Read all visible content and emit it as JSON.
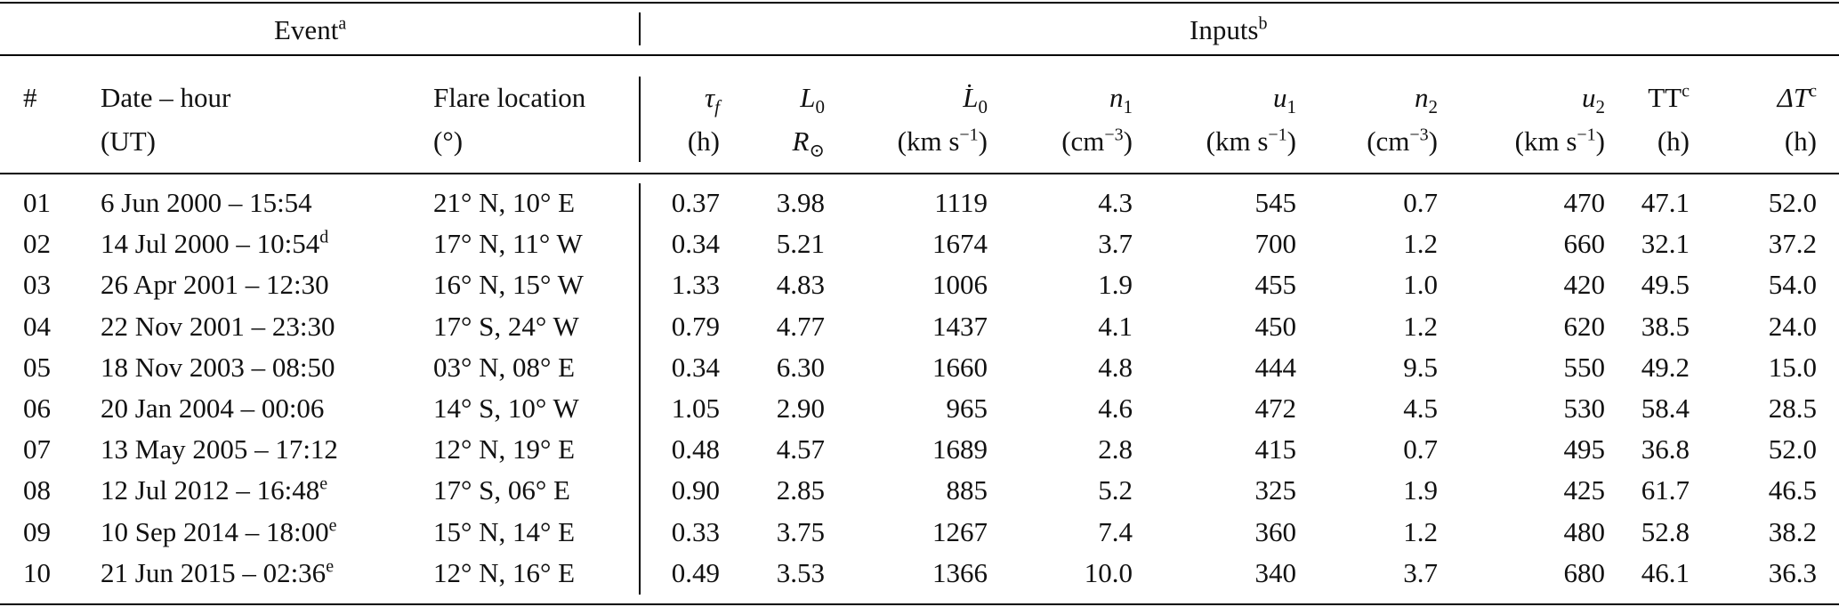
{
  "group_headers": {
    "event": "Event",
    "event_note": "a",
    "inputs": "Inputs",
    "inputs_note": "b"
  },
  "columns": {
    "num": {
      "line1": "#"
    },
    "date": {
      "line1": "Date – hour",
      "line2": "(UT)"
    },
    "flare": {
      "line1": "Flare location",
      "line2": "(°)"
    },
    "tau": {
      "sym": "τ",
      "sub": "f",
      "unit": "(h)"
    },
    "L0": {
      "sym": "L",
      "sub": "0",
      "unit_sym": "R",
      "unit_sub": "⊙"
    },
    "L0dot": {
      "sym": "L̇",
      "sub": "0",
      "unit": "(km s",
      "unit_sup": "−1",
      "unit_close": ")"
    },
    "n1": {
      "sym": "n",
      "sub": "1",
      "unit": "(cm",
      "unit_sup": "−3",
      "unit_close": ")"
    },
    "u1": {
      "sym": "u",
      "sub": "1",
      "unit": "(km s",
      "unit_sup": "−1",
      "unit_close": ")"
    },
    "n2": {
      "sym": "n",
      "sub": "2",
      "unit": "(cm",
      "unit_sup": "−3",
      "unit_close": ")"
    },
    "u2": {
      "sym": "u",
      "sub": "2",
      "unit": "(km s",
      "unit_sup": "−1",
      "unit_close": ")"
    },
    "TT": {
      "sym": "TT",
      "sup": "c",
      "unit": "(h)"
    },
    "dT": {
      "sym": "ΔT",
      "sup": "c",
      "unit": "(h)"
    }
  },
  "rows": [
    {
      "num": "01",
      "date": "6 Jun 2000 – 15:54",
      "date_note": "",
      "flare": "21° N, 10° E",
      "tau": "0.37",
      "L0": "3.98",
      "L0dot": "1119",
      "n1": "4.3",
      "u1": "545",
      "n2": "0.7",
      "u2": "470",
      "TT": "47.1",
      "dT": "52.0"
    },
    {
      "num": "02",
      "date": "14 Jul 2000 – 10:54",
      "date_note": "d",
      "flare": "17° N, 11° W",
      "tau": "0.34",
      "L0": "5.21",
      "L0dot": "1674",
      "n1": "3.7",
      "u1": "700",
      "n2": "1.2",
      "u2": "660",
      "TT": "32.1",
      "dT": "37.2"
    },
    {
      "num": "03",
      "date": "26 Apr 2001 – 12:30",
      "date_note": "",
      "flare": "16° N, 15° W",
      "tau": "1.33",
      "L0": "4.83",
      "L0dot": "1006",
      "n1": "1.9",
      "u1": "455",
      "n2": "1.0",
      "u2": "420",
      "TT": "49.5",
      "dT": "54.0"
    },
    {
      "num": "04",
      "date": "22 Nov 2001 – 23:30",
      "date_note": "",
      "flare": "17° S, 24° W",
      "tau": "0.79",
      "L0": "4.77",
      "L0dot": "1437",
      "n1": "4.1",
      "u1": "450",
      "n2": "1.2",
      "u2": "620",
      "TT": "38.5",
      "dT": "24.0"
    },
    {
      "num": "05",
      "date": "18 Nov 2003 – 08:50",
      "date_note": "",
      "flare": "03° N, 08° E",
      "tau": "0.34",
      "L0": "6.30",
      "L0dot": "1660",
      "n1": "4.8",
      "u1": "444",
      "n2": "9.5",
      "u2": "550",
      "TT": "49.2",
      "dT": "15.0"
    },
    {
      "num": "06",
      "date": "20 Jan 2004 – 00:06",
      "date_note": "",
      "flare": "14° S, 10° W",
      "tau": "1.05",
      "L0": "2.90",
      "L0dot": "965",
      "n1": "4.6",
      "u1": "472",
      "n2": "4.5",
      "u2": "530",
      "TT": "58.4",
      "dT": "28.5"
    },
    {
      "num": "07",
      "date": "13 May 2005 – 17:12",
      "date_note": "",
      "flare": "12° N, 19° E",
      "tau": "0.48",
      "L0": "4.57",
      "L0dot": "1689",
      "n1": "2.8",
      "u1": "415",
      "n2": "0.7",
      "u2": "495",
      "TT": "36.8",
      "dT": "52.0"
    },
    {
      "num": "08",
      "date": "12 Jul 2012 – 16:48",
      "date_note": "e",
      "flare": "17° S, 06° E",
      "tau": "0.90",
      "L0": "2.85",
      "L0dot": "885",
      "n1": "5.2",
      "u1": "325",
      "n2": "1.9",
      "u2": "425",
      "TT": "61.7",
      "dT": "46.5"
    },
    {
      "num": "09",
      "date": "10 Sep 2014 – 18:00",
      "date_note": "e",
      "flare": "15° N, 14° E",
      "tau": "0.33",
      "L0": "3.75",
      "L0dot": "1267",
      "n1": "7.4",
      "u1": "360",
      "n2": "1.2",
      "u2": "480",
      "TT": "52.8",
      "dT": "38.2"
    },
    {
      "num": "10",
      "date": "21 Jun 2015 – 02:36",
      "date_note": "e",
      "flare": "12° N, 16° E",
      "tau": "0.49",
      "L0": "3.53",
      "L0dot": "1366",
      "n1": "10.0",
      "u1": "340",
      "n2": "3.7",
      "u2": "680",
      "TT": "46.1",
      "dT": "36.3"
    }
  ]
}
